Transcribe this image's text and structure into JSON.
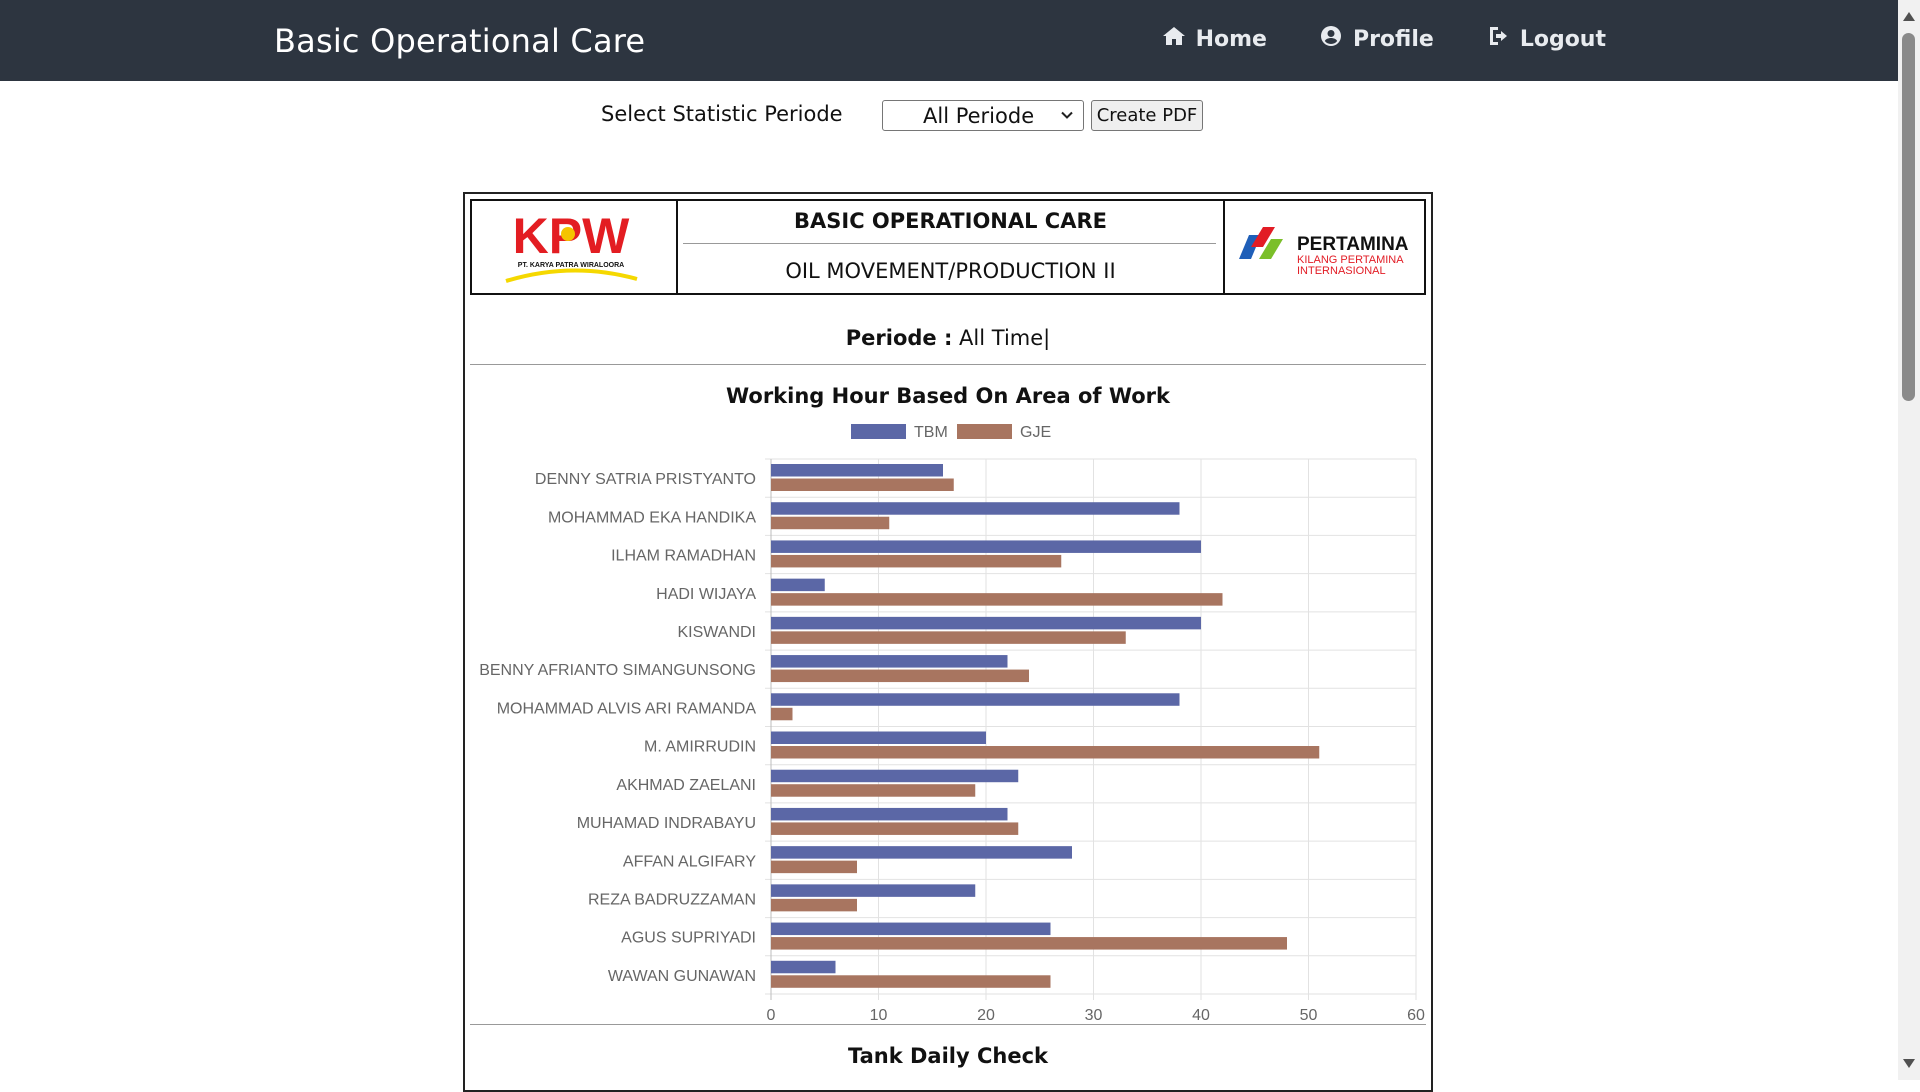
{
  "app": {
    "title": "Basic Operational Care"
  },
  "nav": {
    "items": [
      {
        "label": "Home",
        "icon": "home-icon"
      },
      {
        "label": "Profile",
        "icon": "user-circle-icon"
      },
      {
        "label": "Logout",
        "icon": "logout-icon"
      }
    ]
  },
  "controls": {
    "label": "Select Statistic Periode",
    "select_value": "All Periode",
    "pdf_button": "Create PDF"
  },
  "report": {
    "left_logo_text": "KPW",
    "left_logo_caption": "PT. KARYA PATRA WIRALOORA",
    "title": "BASIC OPERATIONAL CARE",
    "subtitle": "OIL MOVEMENT/PRODUCTION II",
    "right_logo_text": "PERTAMINA",
    "right_logo_line2": "KILANG PERTAMINA",
    "right_logo_line3": "INTERNASIONAL",
    "periode_label": "Periode :",
    "periode_value": "All Time|",
    "next_section_title": "Tank Daily Check"
  },
  "chart_data": {
    "type": "bar",
    "orientation": "horizontal",
    "title": "Working Hour Based On Area of Work",
    "categories": [
      "DENNY SATRIA PRISTYANTO",
      "MOHAMMAD EKA HANDIKA",
      "ILHAM RAMADHAN",
      "HADI WIJAYA",
      "KISWANDI",
      "BENNY AFRIANTO SIMANGUNSONG",
      "MOHAMMAD ALVIS ARI RAMANDA",
      "M. AMIRRUDIN",
      "AKHMAD ZAELANI",
      "MUHAMAD INDRABAYU",
      "AFFAN ALGIFARY",
      "REZA BADRUZZAMAN",
      "AGUS SUPRIYADI",
      "WAWAN GUNAWAN"
    ],
    "series": [
      {
        "name": "TBM",
        "color": "#5b67a6",
        "values": [
          16,
          38,
          40,
          5,
          40,
          22,
          38,
          20,
          23,
          22,
          28,
          19,
          26,
          6
        ]
      },
      {
        "name": "GJE",
        "color": "#a87560",
        "values": [
          17,
          11,
          27,
          42,
          33,
          24,
          2,
          51,
          19,
          23,
          8,
          8,
          48,
          26
        ]
      }
    ],
    "xlim": [
      0,
      60
    ],
    "xticks": [
      0,
      10,
      20,
      30,
      40,
      50,
      60
    ],
    "legend": "top",
    "grid": true
  }
}
